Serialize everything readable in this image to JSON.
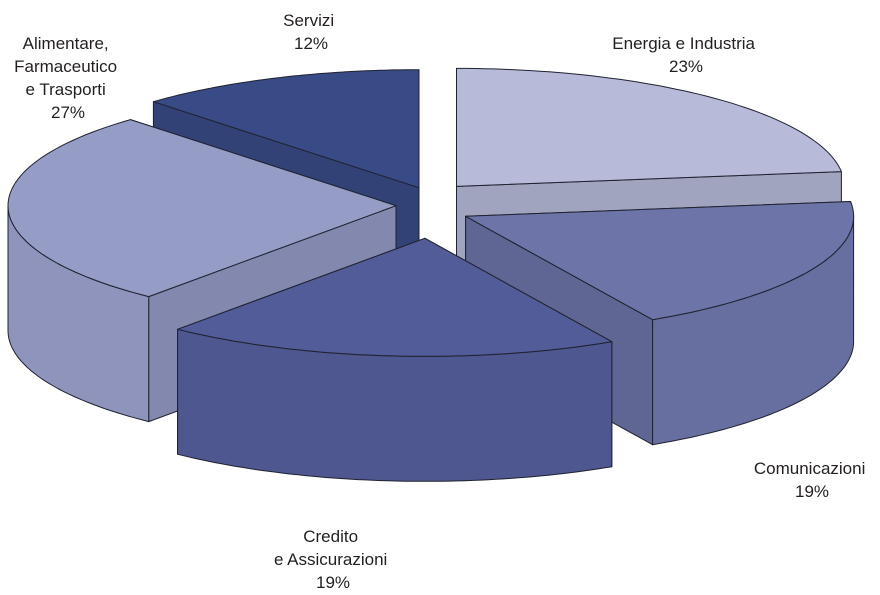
{
  "chart_data": {
    "type": "pie",
    "style": "3d-exploded",
    "slices": [
      {
        "label_lines": [
          "Energia e Industria"
        ],
        "percent_label": "23%",
        "value": 23,
        "color": "#b7bad8"
      },
      {
        "label_lines": [
          "Comunicazioni"
        ],
        "percent_label": "19%",
        "value": 19,
        "color": "#6c74a8"
      },
      {
        "label_lines": [
          "Credito",
          "e Assicurazioni"
        ],
        "percent_label": "19%",
        "value": 19,
        "color": "#525c98"
      },
      {
        "label_lines": [
          "Alimentare,",
          "Farmaceutico",
          "e Trasporti"
        ],
        "percent_label": "27%",
        "value": 27,
        "color": "#959cc6"
      },
      {
        "label_lines": [
          "Servizi"
        ],
        "percent_label": "12%",
        "value": 12,
        "color": "#394b86"
      }
    ]
  }
}
